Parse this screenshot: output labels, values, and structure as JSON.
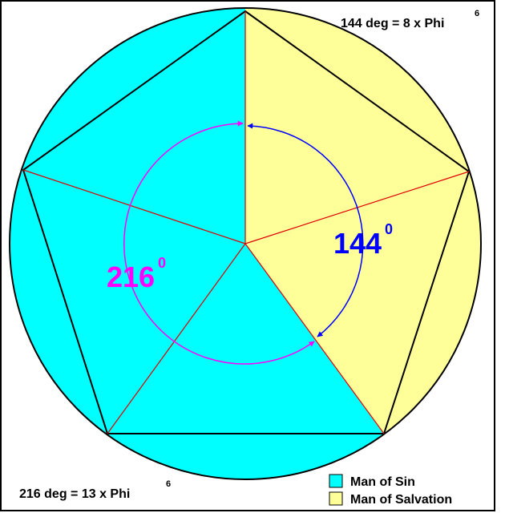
{
  "top_note": {
    "text": "144 deg = 8 x Phi",
    "sup": "6"
  },
  "bottom_note": {
    "text": "216 deg = 13 x Phi",
    "sup": "6"
  },
  "arc_labels": [
    {
      "text": "144",
      "sup": "0"
    },
    {
      "text": "216",
      "sup": "0"
    }
  ],
  "legend": [
    "Man of Sin",
    "Man of Salvation"
  ]
}
